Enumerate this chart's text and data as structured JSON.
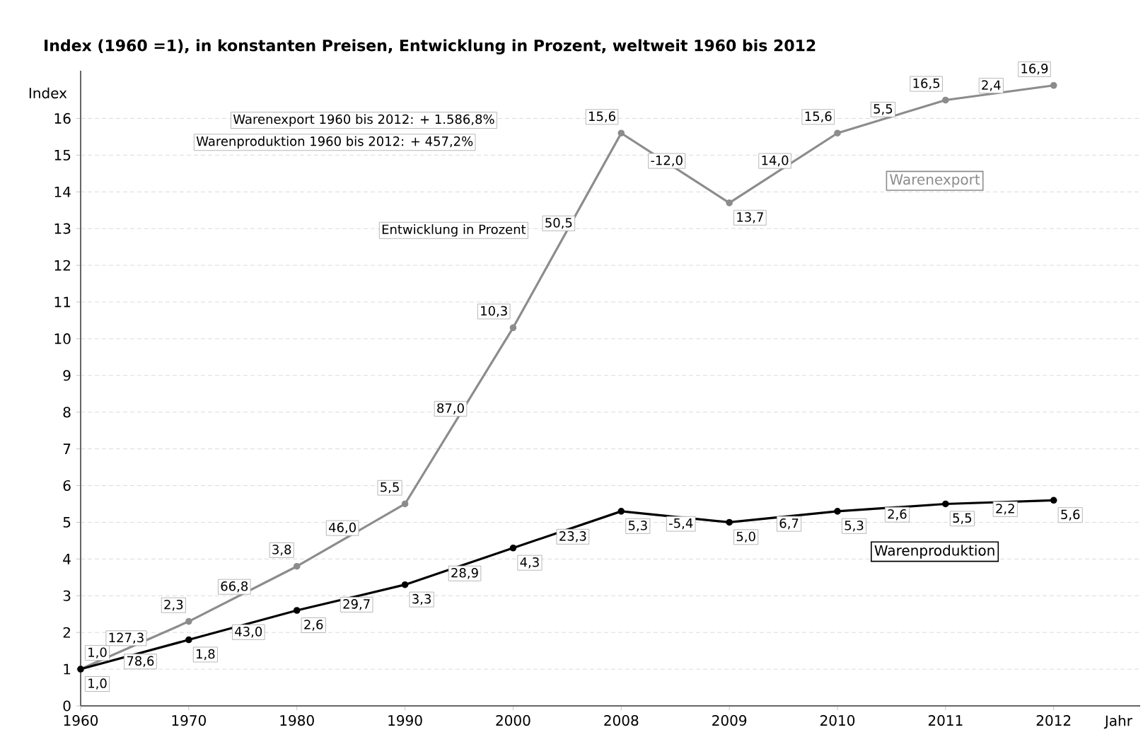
{
  "chart_data": {
    "type": "line",
    "title": "Index (1960 =1), in konstanten Preisen, Entwicklung in Prozent, weltweit 1960 bis 2012",
    "xlabel": "Jahr",
    "ylabel": "Index",
    "categories": [
      "1960",
      "1970",
      "1980",
      "1990",
      "2000",
      "2008",
      "2009",
      "2010",
      "2011",
      "2012"
    ],
    "series": [
      {
        "name": "Warenexport",
        "color": "#8c8c8c",
        "values": [
          1.0,
          2.3,
          3.8,
          5.5,
          10.3,
          15.6,
          13.7,
          15.6,
          16.5,
          16.9
        ],
        "value_labels": [
          "1,0",
          "2,3",
          "3,8",
          "5,5",
          "10,3",
          "15,6",
          "13,7",
          "15,6",
          "16,5",
          "16,9"
        ]
      },
      {
        "name": "Warenproduktion",
        "color": "#000000",
        "values": [
          1.0,
          1.8,
          2.6,
          3.3,
          4.3,
          5.3,
          5.0,
          5.3,
          5.5,
          5.6
        ],
        "value_labels": [
          "1,0",
          "1,8",
          "2,6",
          "3,3",
          "4,3",
          "5,3",
          "5,0",
          "5,3",
          "5,5",
          "5,6"
        ]
      }
    ],
    "annotations": [
      "Warenexport 1960 bis 2012: + 1.586,8%",
      "Warenproduktion 1960 bis 2012: + 457,2%",
      "Entwicklung in Prozent",
      "127,3",
      "66,8",
      "46,0",
      "87,0",
      "50,5",
      "-12,0",
      "14,0",
      "5,5",
      "2,4",
      "78,6",
      "43,0",
      "29,7",
      "28,9",
      "23,3",
      "-5,4",
      "6,7",
      "2,6",
      "2,2"
    ],
    "ylim": [
      0,
      17.3
    ],
    "yticks": [
      0,
      1,
      2,
      3,
      4,
      5,
      6,
      7,
      8,
      9,
      10,
      11,
      12,
      13,
      14,
      15,
      16
    ],
    "grid": "y",
    "marker": "circle",
    "line_style": "solid"
  }
}
